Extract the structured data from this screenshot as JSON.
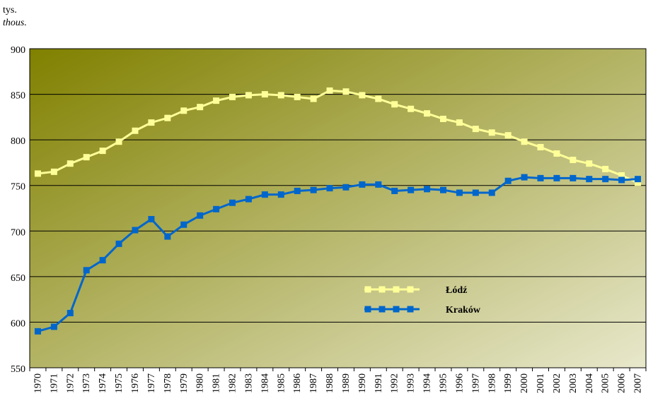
{
  "chart_data": {
    "type": "line",
    "unit_label": "tys.",
    "unit_label_en": "thous.",
    "categories": [
      "1970",
      "1971",
      "1972",
      "1973",
      "1974",
      "1975",
      "1976",
      "1977",
      "1978",
      "1979",
      "1980",
      "1981",
      "1982",
      "1983",
      "1984",
      "1985",
      "1986",
      "1987",
      "1988",
      "1989",
      "1990",
      "1991",
      "1992",
      "1993",
      "1994",
      "1995",
      "1996",
      "1997",
      "1998",
      "1999",
      "2000",
      "2001",
      "2002",
      "2003",
      "2004",
      "2005",
      "2006",
      "2007"
    ],
    "series": [
      {
        "name": "Łódź",
        "color": "#ffff99",
        "values": [
          763,
          765,
          774,
          781,
          788,
          798,
          810,
          819,
          824,
          832,
          836,
          843,
          847,
          849,
          850,
          849,
          847,
          845,
          854,
          853,
          849,
          845,
          839,
          834,
          829,
          823,
          819,
          812,
          808,
          805,
          798,
          792,
          785,
          778,
          774,
          768,
          761,
          753
        ]
      },
      {
        "name": "Kraków",
        "color": "#0066cc",
        "values": [
          590,
          595,
          610,
          657,
          668,
          686,
          701,
          713,
          694,
          707,
          717,
          724,
          731,
          735,
          740,
          740,
          744,
          745,
          747,
          748,
          751,
          751,
          744,
          745,
          746,
          745,
          742,
          742,
          742,
          755,
          759,
          758,
          758,
          758,
          757,
          757,
          756,
          757
        ]
      }
    ],
    "ylim": [
      550,
      900
    ],
    "yticks": [
      550,
      600,
      650,
      700,
      750,
      800,
      850,
      900
    ],
    "grid": true
  }
}
